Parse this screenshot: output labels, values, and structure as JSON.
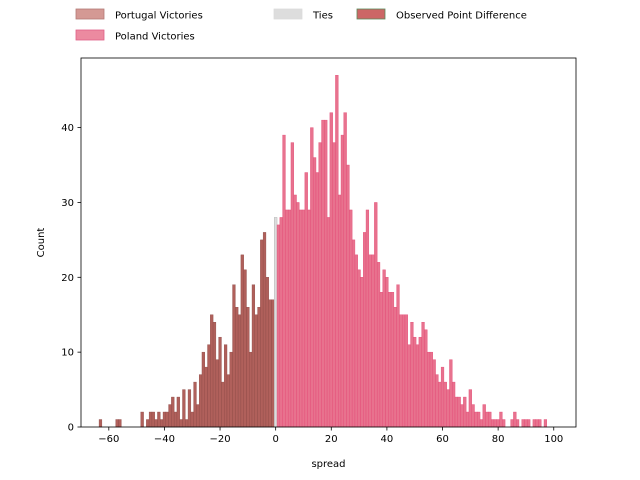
{
  "chart_data": {
    "type": "histogram",
    "xlabel": "spread",
    "ylabel": "Count",
    "xlim": [
      -70,
      108
    ],
    "ylim": [
      0,
      49.3
    ],
    "x_ticks": [
      -60,
      -40,
      -20,
      0,
      20,
      40,
      60,
      80,
      100
    ],
    "y_ticks": [
      0,
      10,
      20,
      30,
      40
    ],
    "bin_width": 1,
    "legend": {
      "placement": "top, above plot",
      "entries": [
        {
          "label": "Portugal Victories",
          "color": "#d49994",
          "edge": "#b37a75"
        },
        {
          "label": "Poland Victories",
          "color": "#ec8aa0",
          "edge": "#e06088"
        },
        {
          "label": "Ties",
          "color": "#dddddd",
          "edge": "#dddddd"
        },
        {
          "label": "Observed Point Difference",
          "color": "#cc6666",
          "edge": "#5a8a5a"
        }
      ]
    },
    "series": [
      {
        "name": "Portugal Victories",
        "color": "#b0605b",
        "edge": "#8e4a46",
        "bins": [
          [
            -63,
            1
          ],
          [
            -57,
            1
          ],
          [
            -56,
            1
          ],
          [
            -48,
            2
          ],
          [
            -46,
            1
          ],
          [
            -45,
            2
          ],
          [
            -44,
            2
          ],
          [
            -43,
            1
          ],
          [
            -42,
            2
          ],
          [
            -41,
            1
          ],
          [
            -40,
            2
          ],
          [
            -39,
            2
          ],
          [
            -38,
            3
          ],
          [
            -37,
            4
          ],
          [
            -36,
            2
          ],
          [
            -35,
            4
          ],
          [
            -34,
            1
          ],
          [
            -33,
            5
          ],
          [
            -32,
            1
          ],
          [
            -31,
            5
          ],
          [
            -30,
            2
          ],
          [
            -29,
            6
          ],
          [
            -28,
            3
          ],
          [
            -27,
            7
          ],
          [
            -26,
            10
          ],
          [
            -25,
            8
          ],
          [
            -24,
            11
          ],
          [
            -23,
            15
          ],
          [
            -22,
            14
          ],
          [
            -21,
            9
          ],
          [
            -20,
            12
          ],
          [
            -19,
            6
          ],
          [
            -18,
            11
          ],
          [
            -17,
            7
          ],
          [
            -16,
            10
          ],
          [
            -15,
            19
          ],
          [
            -14,
            16
          ],
          [
            -13,
            15
          ],
          [
            -12,
            23
          ],
          [
            -11,
            21
          ],
          [
            -10,
            16
          ],
          [
            -9,
            10
          ],
          [
            -8,
            19
          ],
          [
            -7,
            15
          ],
          [
            -6,
            16
          ],
          [
            -5,
            25
          ],
          [
            -4,
            26
          ],
          [
            -3,
            20
          ],
          [
            -2,
            17
          ],
          [
            -1,
            17
          ]
        ]
      },
      {
        "name": "Ties",
        "color": "#dddddd",
        "edge": "#aaaaaa",
        "bins": [
          [
            0,
            28
          ]
        ]
      },
      {
        "name": "Poland Victories",
        "color": "#e8728e",
        "edge": "#e34a75",
        "bins": [
          [
            1,
            27
          ],
          [
            2,
            28
          ],
          [
            3,
            39
          ],
          [
            4,
            29
          ],
          [
            5,
            29
          ],
          [
            6,
            38
          ],
          [
            7,
            31
          ],
          [
            8,
            30
          ],
          [
            9,
            29
          ],
          [
            10,
            29
          ],
          [
            11,
            34
          ],
          [
            12,
            29
          ],
          [
            13,
            40
          ],
          [
            14,
            36
          ],
          [
            15,
            34
          ],
          [
            16,
            38
          ],
          [
            17,
            41
          ],
          [
            18,
            41
          ],
          [
            19,
            28
          ],
          [
            20,
            42
          ],
          [
            21,
            38
          ],
          [
            22,
            47
          ],
          [
            23,
            31
          ],
          [
            24,
            39
          ],
          [
            25,
            42
          ],
          [
            26,
            35
          ],
          [
            27,
            29
          ],
          [
            28,
            25
          ],
          [
            29,
            23
          ],
          [
            30,
            21
          ],
          [
            31,
            20
          ],
          [
            32,
            26
          ],
          [
            33,
            29
          ],
          [
            34,
            23
          ],
          [
            35,
            23
          ],
          [
            36,
            30
          ],
          [
            37,
            22
          ],
          [
            38,
            18
          ],
          [
            39,
            21
          ],
          [
            40,
            20
          ],
          [
            41,
            18
          ],
          [
            42,
            18
          ],
          [
            43,
            16
          ],
          [
            44,
            19
          ],
          [
            45,
            15
          ],
          [
            46,
            15
          ],
          [
            47,
            15
          ],
          [
            48,
            11
          ],
          [
            49,
            14
          ],
          [
            50,
            12
          ],
          [
            51,
            11
          ],
          [
            52,
            12
          ],
          [
            53,
            14
          ],
          [
            54,
            13
          ],
          [
            55,
            10
          ],
          [
            56,
            10
          ],
          [
            57,
            9
          ],
          [
            58,
            7
          ],
          [
            59,
            6
          ],
          [
            60,
            8
          ],
          [
            61,
            6
          ],
          [
            62,
            5
          ],
          [
            63,
            9
          ],
          [
            64,
            6
          ],
          [
            65,
            4
          ],
          [
            66,
            4
          ],
          [
            67,
            3
          ],
          [
            68,
            4
          ],
          [
            69,
            2
          ],
          [
            70,
            5
          ],
          [
            71,
            3
          ],
          [
            72,
            2
          ],
          [
            73,
            2
          ],
          [
            74,
            1
          ],
          [
            75,
            3
          ],
          [
            76,
            2
          ],
          [
            77,
            2
          ],
          [
            78,
            1
          ],
          [
            79,
            1
          ],
          [
            80,
            1
          ],
          [
            81,
            2
          ],
          [
            82,
            1
          ],
          [
            85,
            1
          ],
          [
            86,
            2
          ],
          [
            87,
            1
          ],
          [
            89,
            1
          ],
          [
            90,
            1
          ],
          [
            91,
            1
          ],
          [
            93,
            1
          ],
          [
            94,
            1
          ],
          [
            95,
            1
          ],
          [
            97,
            1
          ]
        ]
      }
    ]
  }
}
